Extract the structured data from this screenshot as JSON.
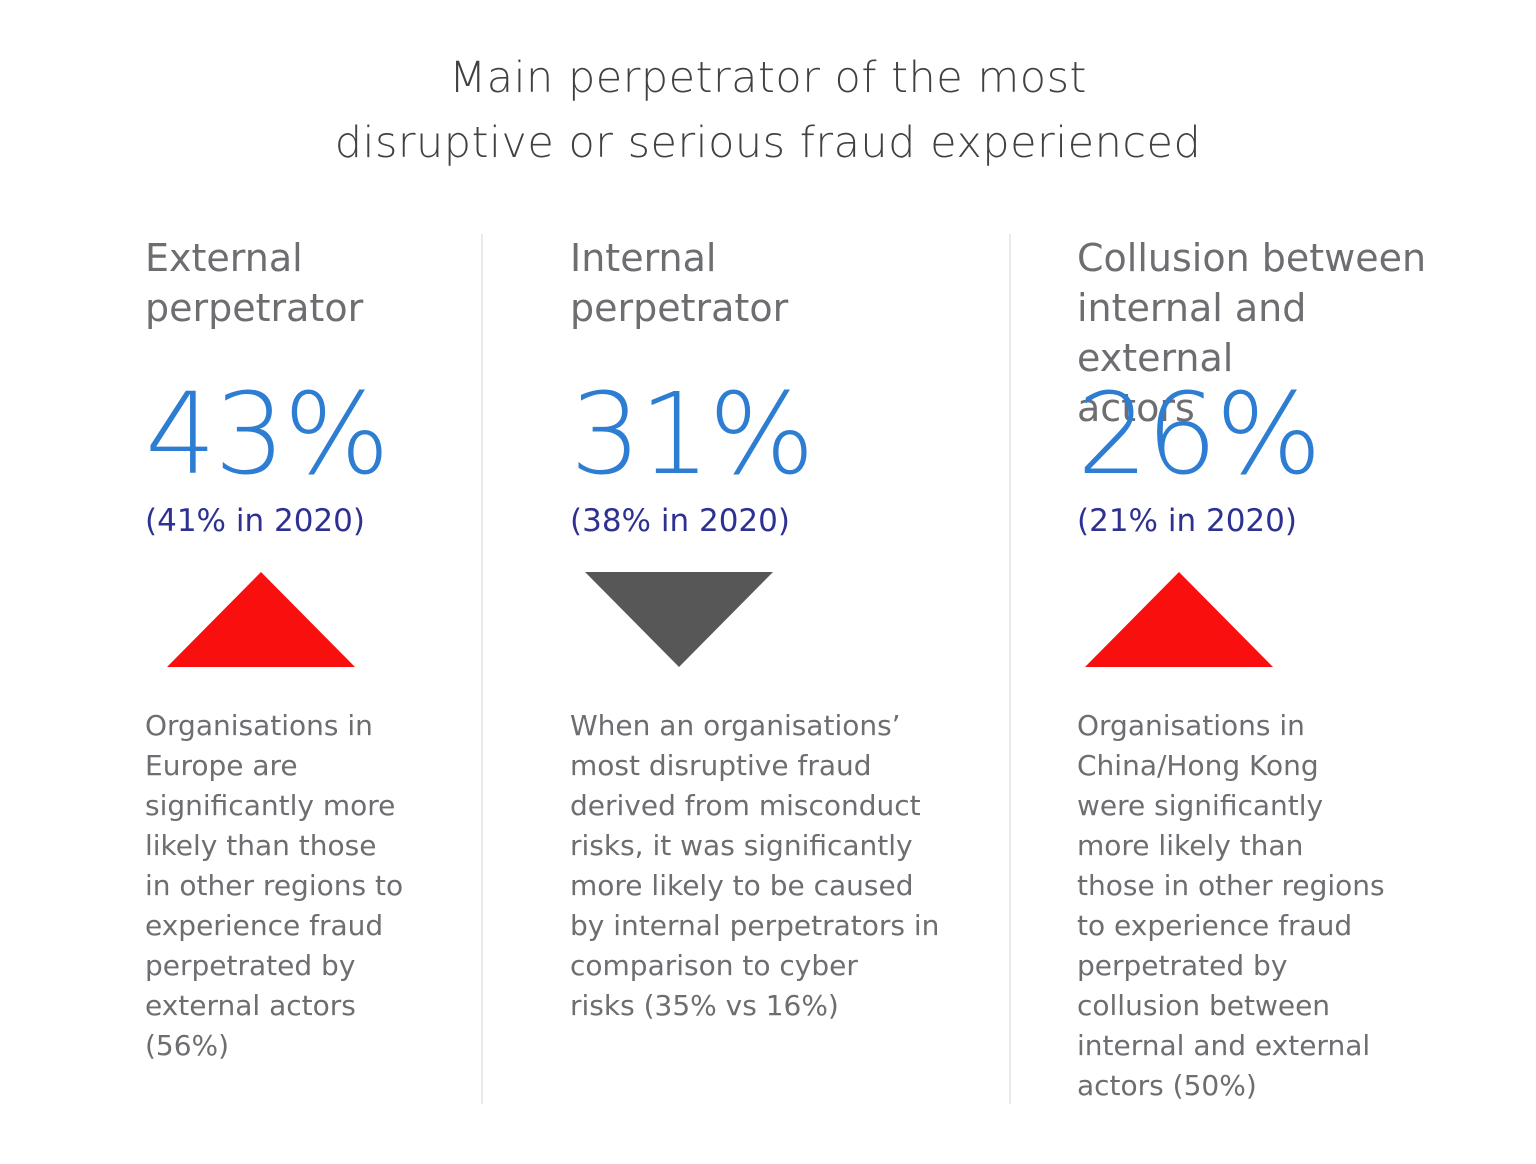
{
  "title": "Main perpetrator of the most\ndisruptive or serious fraud experienced",
  "colors": {
    "title_text": "#414042",
    "heading_text": "#6d6e71",
    "body_text": "#6d6e71",
    "accent_blue": "#2d7dd2",
    "prior_navy": "#2e3192",
    "trend_up_red": "#fa0f0f",
    "trend_down_gray": "#575757",
    "divider": "#e9e9e9"
  },
  "columns": [
    {
      "header": "External\nperpetrator",
      "value": "43%",
      "prior": "(41% in 2020)",
      "trend": "up",
      "note": "Organisations in\nEurope are\nsignificantly more\nlikely than those\nin other regions to\nexperience fraud\nperpetrated by\nexternal actors\n(56%)"
    },
    {
      "header": "Internal\nperpetrator",
      "value": "31%",
      "prior": "(38% in 2020)",
      "trend": "down",
      "note": "When an organisations’\nmost disruptive fraud\nderived from misconduct\nrisks, it was significantly\nmore likely to be caused\nby internal perpetrators in\ncomparison to cyber\nrisks (35% vs 16%)"
    },
    {
      "header": "Collusion between\ninternal and external\nactors",
      "value": "26%",
      "prior": "(21% in 2020)",
      "trend": "up",
      "note": "Organisations in\nChina/Hong Kong\nwere significantly\nmore likely than\nthose in other regions\nto experience fraud\nperpetrated by\ncollusion between\ninternal and external\nactors (50%)"
    }
  ],
  "chart_data": {
    "type": "table",
    "title": "Main perpetrator of the most disruptive or serious fraud experienced",
    "columns": [
      "Perpetrator",
      "Current %",
      "2020 %",
      "Trend"
    ],
    "rows": [
      [
        "External perpetrator",
        43,
        41,
        "up"
      ],
      [
        "Internal perpetrator",
        31,
        38,
        "down"
      ],
      [
        "Collusion between internal and external actors",
        26,
        21,
        "up"
      ]
    ],
    "annotations": [
      "Organisations in Europe are significantly more likely than those in other regions to experience fraud perpetrated by external actors (56%)",
      "When an organisations’ most disruptive fraud derived from misconduct risks, it was significantly more likely to be caused by internal perpetrators in comparison to cyber risks (35% vs 16%)",
      "Organisations in China/Hong Kong were significantly more likely than those in other regions to experience fraud perpetrated by collusion between internal and external actors (50%)"
    ]
  }
}
